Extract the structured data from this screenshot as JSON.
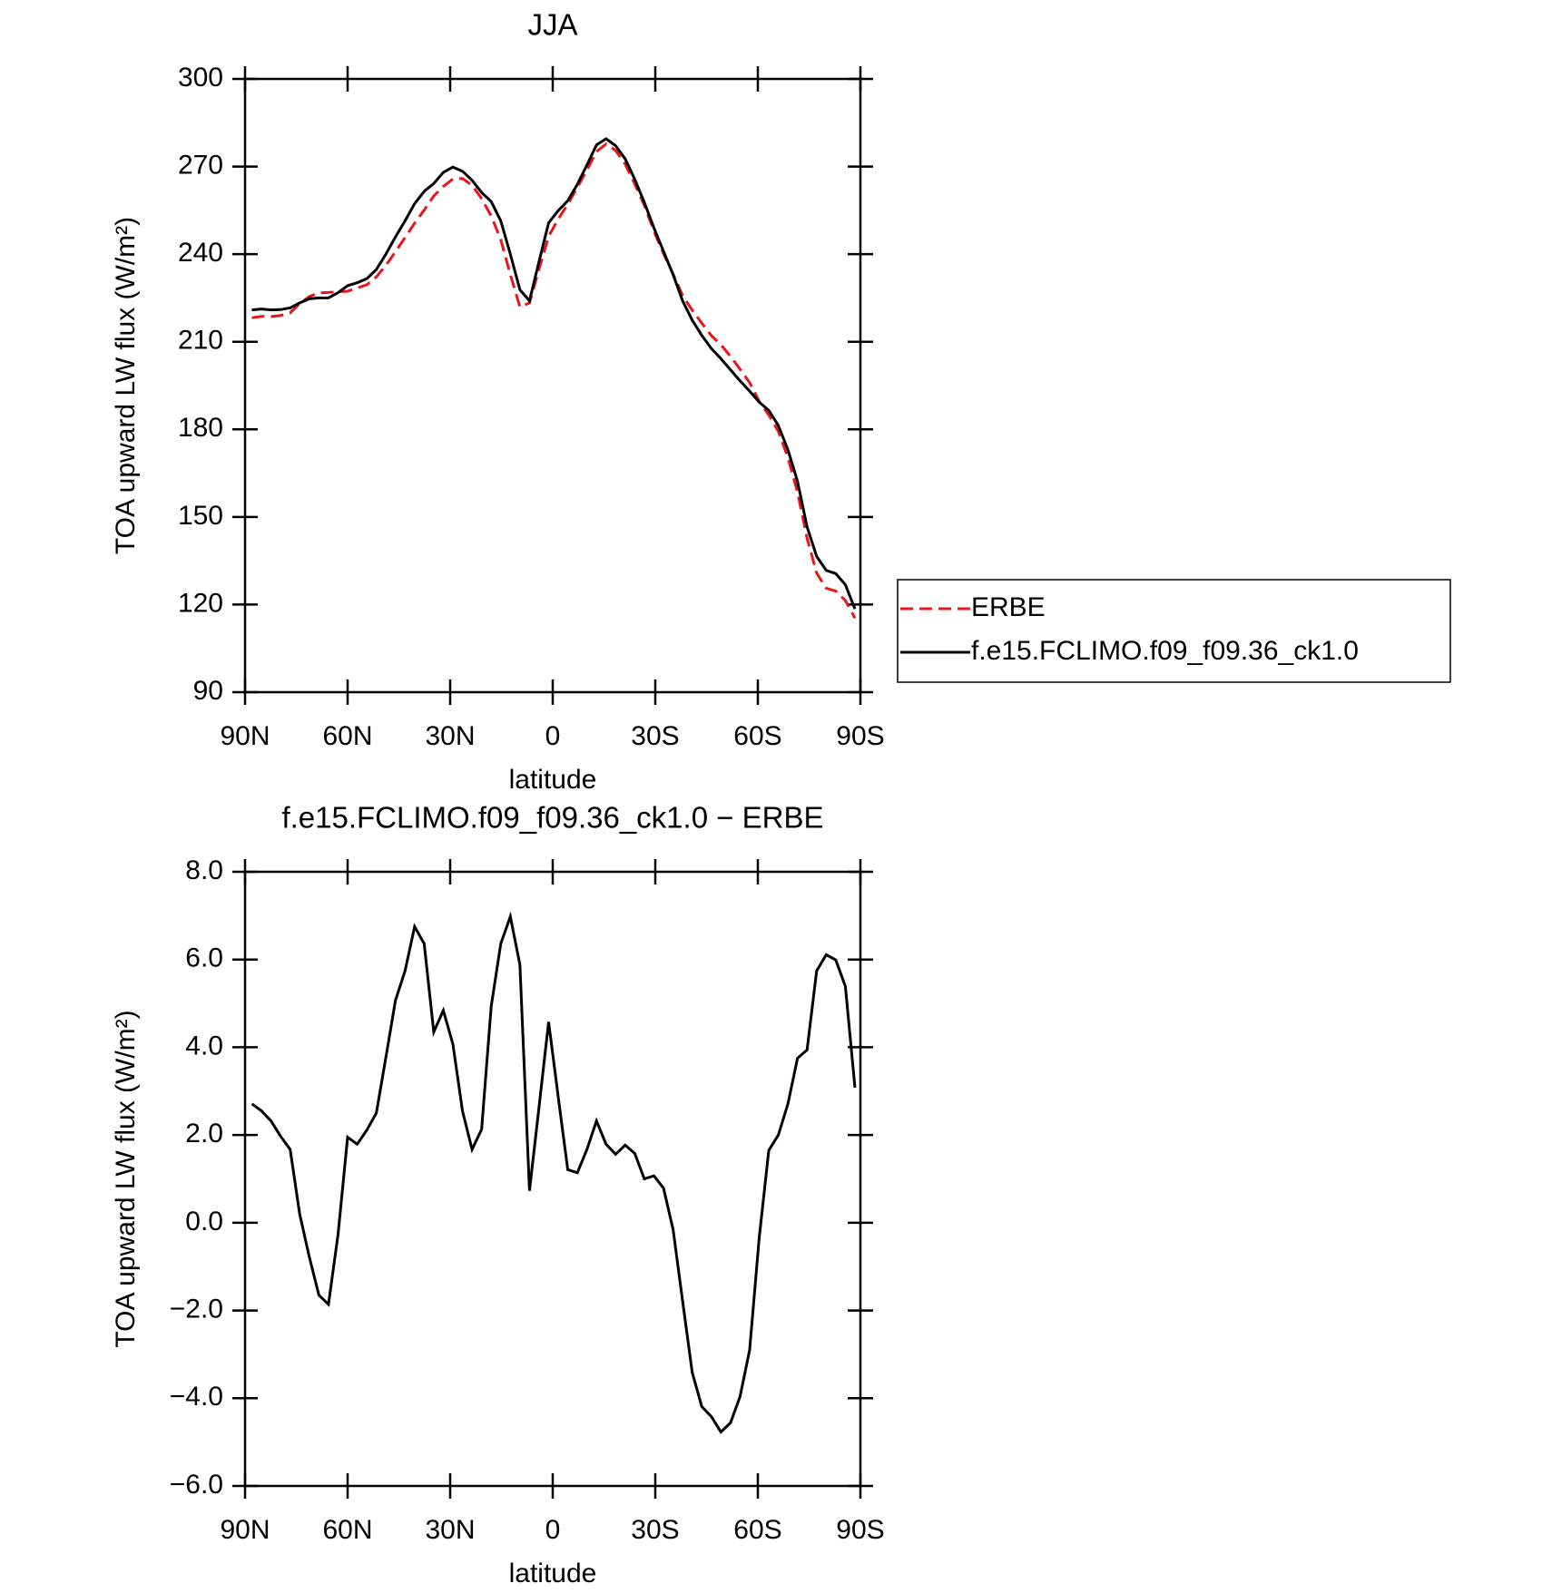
{
  "chart_data": [
    {
      "type": "line",
      "title": "JJA",
      "xlabel": "latitude",
      "ylabel": "TOA upward LW flux (W/m²)",
      "x": [
        88,
        85.2,
        82.4,
        79.6,
        76.8,
        74,
        71.2,
        68.4,
        65.6,
        62.8,
        60,
        57.2,
        54.4,
        51.6,
        48.8,
        46,
        43.2,
        40.4,
        37.6,
        34.8,
        32,
        29.2,
        26.4,
        23.6,
        20.8,
        18,
        15.2,
        12.4,
        9.6,
        6.8,
        4,
        1.2,
        -1.6,
        -4.4,
        -7.2,
        -10,
        -12.8,
        -15.6,
        -18.4,
        -21.2,
        -24,
        -26.8,
        -29.6,
        -32.4,
        -35.2,
        -38,
        -40.8,
        -43.6,
        -46.4,
        -49.2,
        -52,
        -54.8,
        -57.6,
        -60.4,
        -63.2,
        -66,
        -68.8,
        -71.6,
        -74.4,
        -77.2,
        -80,
        -82.8,
        -85.6,
        -88.4
      ],
      "series": [
        {
          "name": "ERBE",
          "color": "#e8161b",
          "linestyle": "dashed",
          "values": [
            218.2,
            218.7,
            218.6,
            219.0,
            219.9,
            223.1,
            225.5,
            226.7,
            226.9,
            227.1,
            227.3,
            228.4,
            229.5,
            232.2,
            236.2,
            240.8,
            245.7,
            250.6,
            255.1,
            259.9,
            263.2,
            265.7,
            265.9,
            263.6,
            259.0,
            253.1,
            245.0,
            233.0,
            221.9,
            223.3,
            234.9,
            246.1,
            252.0,
            257.1,
            262.8,
            268.8,
            275.1,
            277.7,
            275.5,
            270.8,
            264.0,
            256.7,
            247.9,
            240.2,
            233.2,
            225.8,
            220.8,
            216.4,
            212.1,
            209.0,
            205.0,
            200.6,
            196.0,
            189.6,
            184.9,
            179.3,
            170.3,
            158.5,
            142.7,
            130.8,
            125.6,
            124.6,
            121.4,
            115.4
          ]
        },
        {
          "name": "f.e15.FCLIMO.f09_f09.36_ck1.0",
          "color": "#000000",
          "linestyle": "solid",
          "values": [
            220.9,
            221.2,
            220.9,
            221.0,
            221.6,
            223.3,
            224.7,
            225.0,
            225.0,
            226.8,
            229.2,
            230.2,
            231.6,
            234.7,
            240.0,
            245.9,
            251.4,
            257.3,
            261.5,
            264.2,
            268.0,
            269.8,
            268.4,
            265.3,
            261.1,
            258.0,
            251.4,
            240.0,
            227.8,
            224.0,
            237.5,
            250.7,
            254.9,
            258.3,
            263.9,
            270.5,
            277.4,
            279.5,
            277.1,
            272.6,
            265.6,
            257.7,
            249.0,
            241.0,
            233.0,
            224.0,
            217.4,
            212.2,
            207.7,
            204.2,
            200.4,
            196.6,
            193.1,
            189.3,
            186.5,
            181.3,
            173.0,
            162.2,
            146.6,
            136.5,
            131.7,
            130.6,
            126.8,
            118.5
          ]
        }
      ],
      "xlim": [
        90,
        -90
      ],
      "xticks": [
        {
          "value": 90,
          "label": "90N"
        },
        {
          "value": 60,
          "label": "60N"
        },
        {
          "value": 30,
          "label": "30N"
        },
        0,
        {
          "value": -30,
          "label": "30S"
        },
        {
          "value": -60,
          "label": "60S"
        },
        {
          "value": -90,
          "label": "90S"
        }
      ],
      "ylim": [
        90,
        300
      ],
      "yticks": [
        90,
        120,
        150,
        180,
        210,
        240,
        270,
        300
      ],
      "legend": "right"
    },
    {
      "type": "line",
      "title": "f.e15.FCLIMO.f09_f09.36_ck1.0 − ERBE",
      "xlabel": "latitude",
      "ylabel": "TOA upward LW flux (W/m²)",
      "x": [
        88,
        85.2,
        82.4,
        79.6,
        76.8,
        74,
        71.2,
        68.4,
        65.6,
        62.8,
        60,
        57.2,
        54.4,
        51.6,
        48.8,
        46,
        43.2,
        40.4,
        37.6,
        34.8,
        32,
        29.2,
        26.4,
        23.6,
        20.8,
        18,
        15.2,
        12.4,
        9.6,
        6.8,
        4,
        1.2,
        -1.6,
        -4.4,
        -7.2,
        -10,
        -12.8,
        -15.6,
        -18.4,
        -21.2,
        -24,
        -26.8,
        -29.6,
        -32.4,
        -35.2,
        -38,
        -40.8,
        -43.6,
        -46.4,
        -49.2,
        -52,
        -54.8,
        -57.6,
        -60.4,
        -63.2,
        -66,
        -68.8,
        -71.6,
        -74.4,
        -77.2,
        -80,
        -82.8,
        -85.6,
        -88.4
      ],
      "series": [
        {
          "color": "#000000",
          "linestyle": "solid",
          "values": [
            2.71,
            2.55,
            2.32,
            1.97,
            1.67,
            0.19,
            -0.78,
            -1.65,
            -1.86,
            -0.27,
            1.95,
            1.79,
            2.11,
            2.5,
            3.77,
            5.07,
            5.74,
            6.75,
            6.36,
            4.35,
            4.84,
            4.07,
            2.55,
            1.67,
            2.13,
            4.93,
            6.36,
            6.98,
            5.88,
            0.73,
            2.64,
            4.58,
            2.87,
            1.21,
            1.14,
            1.67,
            2.32,
            1.79,
            1.56,
            1.77,
            1.58,
            1.0,
            1.07,
            0.79,
            -0.15,
            -1.79,
            -3.41,
            -4.19,
            -4.42,
            -4.77,
            -4.56,
            -3.96,
            -2.9,
            -0.34,
            1.65,
            2.0,
            2.71,
            3.75,
            3.94,
            5.74,
            6.11,
            5.99,
            5.39,
            3.08
          ]
        }
      ],
      "xlim": [
        90,
        -90
      ],
      "xticks": [
        {
          "value": 90,
          "label": "90N"
        },
        {
          "value": 60,
          "label": "60N"
        },
        {
          "value": 30,
          "label": "30N"
        },
        0,
        {
          "value": -30,
          "label": "30S"
        },
        {
          "value": -60,
          "label": "60S"
        },
        {
          "value": -90,
          "label": "90S"
        }
      ],
      "ylim": [
        -6,
        8
      ],
      "yticks": [
        {
          "value": -6,
          "label": "−6.0"
        },
        {
          "value": -4,
          "label": "−4.0"
        },
        {
          "value": -2,
          "label": "−2.0"
        },
        {
          "value": 0,
          "label": "0.0"
        },
        {
          "value": 2,
          "label": "2.0"
        },
        {
          "value": 4,
          "label": "4.0"
        },
        {
          "value": 6,
          "label": "6.0"
        },
        {
          "value": 8,
          "label": "8.0"
        }
      ]
    }
  ]
}
